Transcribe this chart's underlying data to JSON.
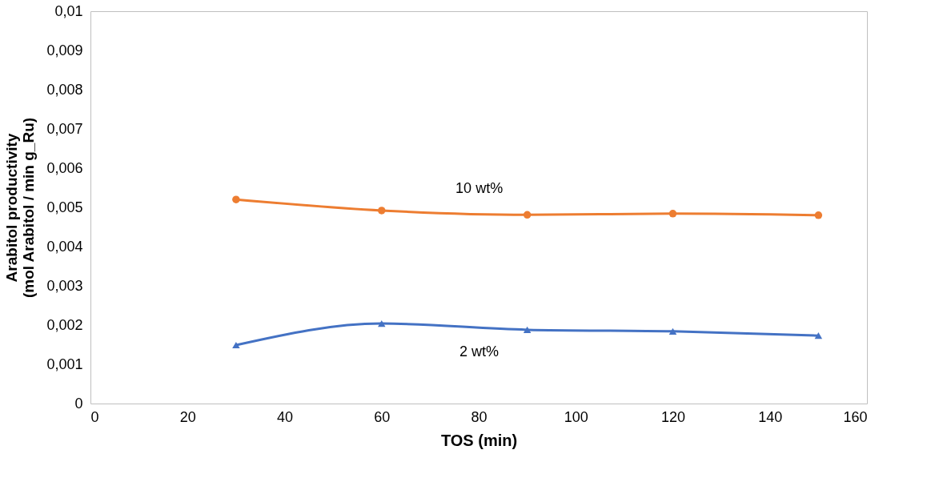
{
  "chart_data": {
    "type": "line",
    "xlabel": "TOS (min)",
    "ylabel": "Arabitol productivity\n(mol Arabitol / min g_Ru)",
    "x": [
      30,
      60,
      90,
      120,
      150
    ],
    "series": [
      {
        "name": "10 wt%",
        "color": "#ed7d31",
        "marker": "circle",
        "values": [
          0.0052,
          0.00492,
          0.00481,
          0.00484,
          0.0048
        ]
      },
      {
        "name": "2 wt%",
        "color": "#4472c4",
        "marker": "triangle",
        "values": [
          0.00149,
          0.00204,
          0.00188,
          0.00184,
          0.00173
        ]
      }
    ],
    "xlim": [
      0,
      160
    ],
    "xticks": [
      0,
      20,
      40,
      60,
      80,
      100,
      120,
      140,
      160
    ],
    "ylim": [
      0,
      0.01
    ],
    "yticks": [
      {
        "value": 0,
        "label": "0"
      },
      {
        "value": 0.001,
        "label": "0,001"
      },
      {
        "value": 0.002,
        "label": "0,002"
      },
      {
        "value": 0.003,
        "label": "0,003"
      },
      {
        "value": 0.004,
        "label": "0,004"
      },
      {
        "value": 0.005,
        "label": "0,005"
      },
      {
        "value": 0.006,
        "label": "0,006"
      },
      {
        "value": 0.007,
        "label": "0,007"
      },
      {
        "value": 0.008,
        "label": "0,008"
      },
      {
        "value": 0.009,
        "label": "0,009"
      },
      {
        "value": 0.01,
        "label": "0,01"
      }
    ],
    "grid": false,
    "legend": false,
    "line_style": "solid"
  }
}
